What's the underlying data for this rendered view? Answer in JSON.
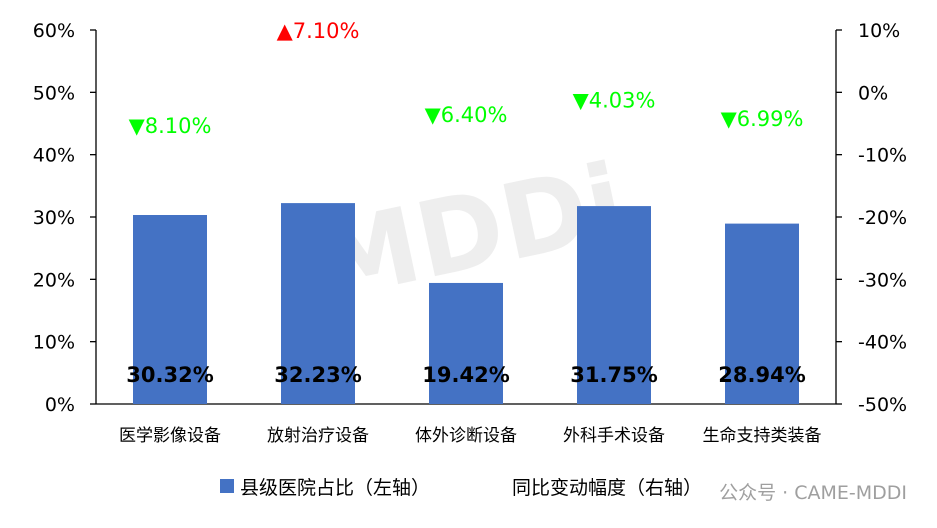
{
  "chart_data": {
    "type": "bar",
    "categories": [
      "医学影像设备",
      "放射治疗设备",
      "体外诊断设备",
      "外科手术设备",
      "生命支持类装备"
    ],
    "series": [
      {
        "name": "县级医院占比（左轴）",
        "axis": "left",
        "color": "#4472C4",
        "values": [
          30.32,
          32.23,
          19.42,
          31.75,
          28.94
        ],
        "labels": [
          "30.32%",
          "32.23%",
          "19.42%",
          "31.75%",
          "28.94%"
        ]
      },
      {
        "name": "同比变动幅度（右轴）",
        "axis": "right",
        "values": [
          -8.1,
          7.1,
          -6.4,
          -4.03,
          -6.99
        ],
        "labels": [
          "▼8.10%",
          "▲7.10%",
          "▼6.40%",
          "▼4.03%",
          "▼6.99%"
        ],
        "colors": [
          "#00FF00",
          "#FF0000",
          "#00FF00",
          "#00FF00",
          "#00FF00"
        ]
      }
    ],
    "y_left": {
      "ylim": [
        0,
        60
      ],
      "ticks": [
        "0%",
        "10%",
        "20%",
        "30%",
        "40%",
        "50%",
        "60%"
      ]
    },
    "y_right": {
      "ylim": [
        -50,
        10
      ],
      "ticks": [
        "-50%",
        "-40%",
        "-30%",
        "-20%",
        "-10%",
        "0%",
        "10%"
      ]
    },
    "legend_position": "bottom",
    "grid": false
  },
  "watermark": {
    "logo_text": "MDDi",
    "footer_text": "公众号 · CAME-MDDI"
  }
}
